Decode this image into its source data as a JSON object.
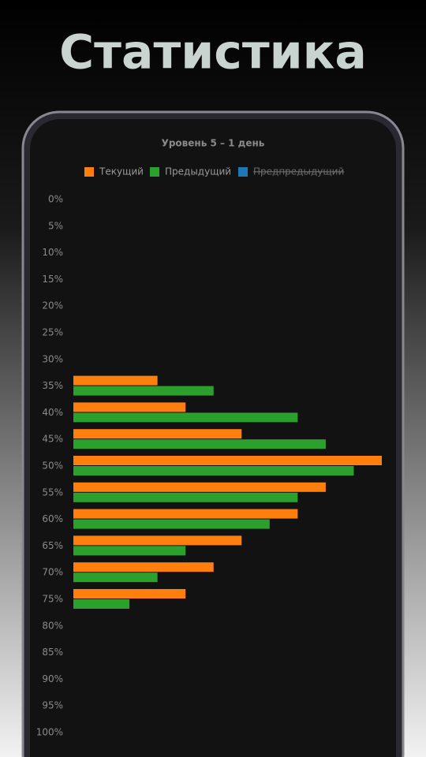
{
  "header": {
    "title": "Статистика"
  },
  "chart_data": {
    "type": "barh",
    "title": "Уровень 5 – 1 день",
    "categories": [
      "0%",
      "5%",
      "10%",
      "15%",
      "20%",
      "25%",
      "30%",
      "35%",
      "40%",
      "45%",
      "50%",
      "55%",
      "60%",
      "65%",
      "70%",
      "75%",
      "80%",
      "85%",
      "90%",
      "95%",
      "100%"
    ],
    "series": [
      {
        "name": "Текущий",
        "color": "#ff7f0e",
        "values": [
          null,
          null,
          null,
          null,
          null,
          null,
          null,
          3,
          4,
          6,
          11,
          9,
          8,
          6,
          5,
          4,
          null,
          null,
          null,
          null,
          null
        ]
      },
      {
        "name": "Предыдущий",
        "color": "#2ca02c",
        "values": [
          null,
          null,
          null,
          null,
          null,
          null,
          null,
          5,
          8,
          9,
          10,
          8,
          7,
          4,
          3,
          2,
          null,
          null,
          null,
          null,
          null
        ]
      },
      {
        "name": "Предпредыдущий",
        "color": "#1f77b4",
        "hidden": true,
        "values": [
          null,
          null,
          null,
          null,
          null,
          null,
          null,
          null,
          null,
          null,
          null,
          null,
          null,
          null,
          null,
          null,
          null,
          null,
          null,
          null,
          null
        ]
      }
    ],
    "xlim": [
      0,
      11
    ],
    "legend": "top"
  }
}
